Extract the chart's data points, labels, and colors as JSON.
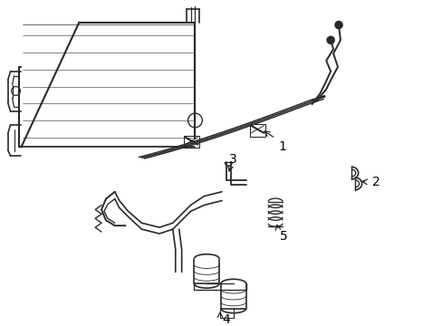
{
  "bg_color": "#ffffff",
  "line_color": "#2a2a2a",
  "fig_width": 4.89,
  "fig_height": 3.6,
  "dpi": 100
}
